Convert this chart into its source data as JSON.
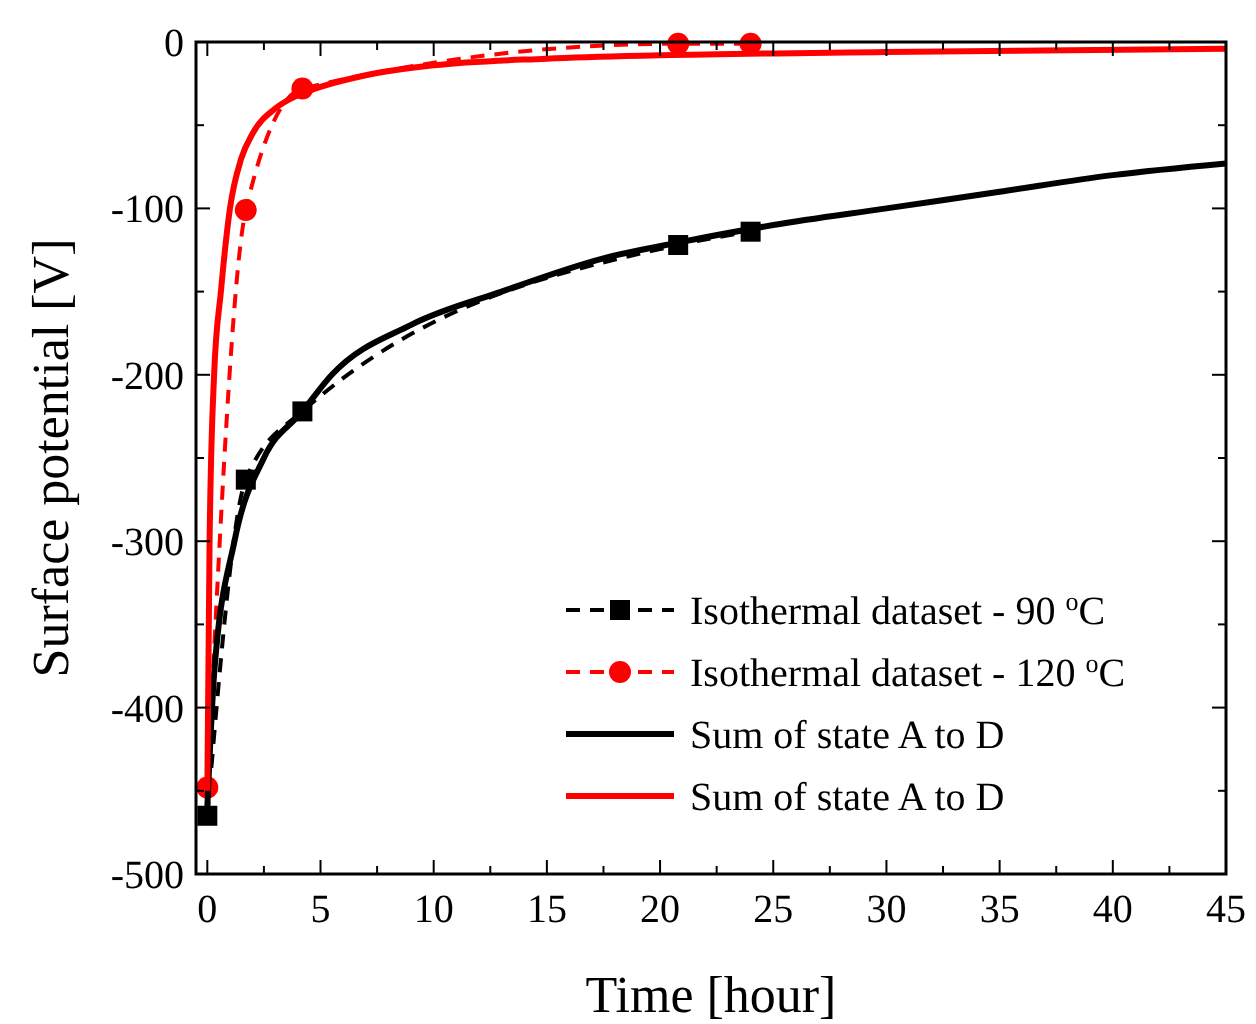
{
  "chart_data": {
    "type": "line",
    "xlabel": "Time [hour]",
    "ylabel": "Surface potential [V]",
    "xlim": [
      -0.5,
      45
    ],
    "xticks": [
      0,
      5,
      10,
      15,
      20,
      25,
      30,
      35,
      40,
      45
    ],
    "ylim": [
      -500,
      0
    ],
    "yticks": [
      -500,
      -400,
      -300,
      -200,
      -100,
      0
    ],
    "grid": false,
    "legend": "bottom right",
    "series": [
      {
        "name": "Isothermal dataset - 90 $^{o}$C",
        "color": "#000000",
        "marker": "square",
        "line_style": "dashed",
        "x": [
          0,
          1.7,
          4.2,
          20.8,
          24
        ],
        "values": [
          -465,
          -263,
          -222,
          -122,
          -114
        ]
      },
      {
        "name": "Isothermal dataset - 120 $^{o}$C",
        "color": "#ff0000",
        "marker": "circle",
        "line_style": "dashed",
        "x": [
          0,
          1.7,
          4.2,
          20.8,
          24
        ],
        "values": [
          -448,
          -101,
          -28,
          -1,
          -1
        ]
      },
      {
        "name": "Sum of state A to D",
        "color": "#000000",
        "marker": "none",
        "line_style": "solid",
        "x": [
          0,
          0.3,
          1.2,
          2.5,
          4.2,
          5.5,
          9,
          13,
          17.5,
          21,
          25,
          30,
          35,
          40,
          45
        ],
        "values": [
          -460,
          -380,
          -300,
          -250,
          -222,
          -200,
          -170,
          -150,
          -130,
          -120,
          -110,
          -100,
          -90,
          -80,
          -73
        ]
      },
      {
        "name": "Sum of state A to D",
        "color": "#ff0000",
        "marker": "none",
        "line_style": "solid",
        "x": [
          0,
          0.1,
          0.3,
          0.6,
          1,
          1.5,
          2,
          3,
          4,
          5,
          7,
          10,
          15,
          20,
          30,
          45
        ],
        "values": [
          -450,
          -300,
          -200,
          -150,
          -100,
          -70,
          -55,
          -40,
          -32,
          -27,
          -20,
          -14,
          -10,
          -8,
          -6,
          -4
        ]
      }
    ]
  }
}
